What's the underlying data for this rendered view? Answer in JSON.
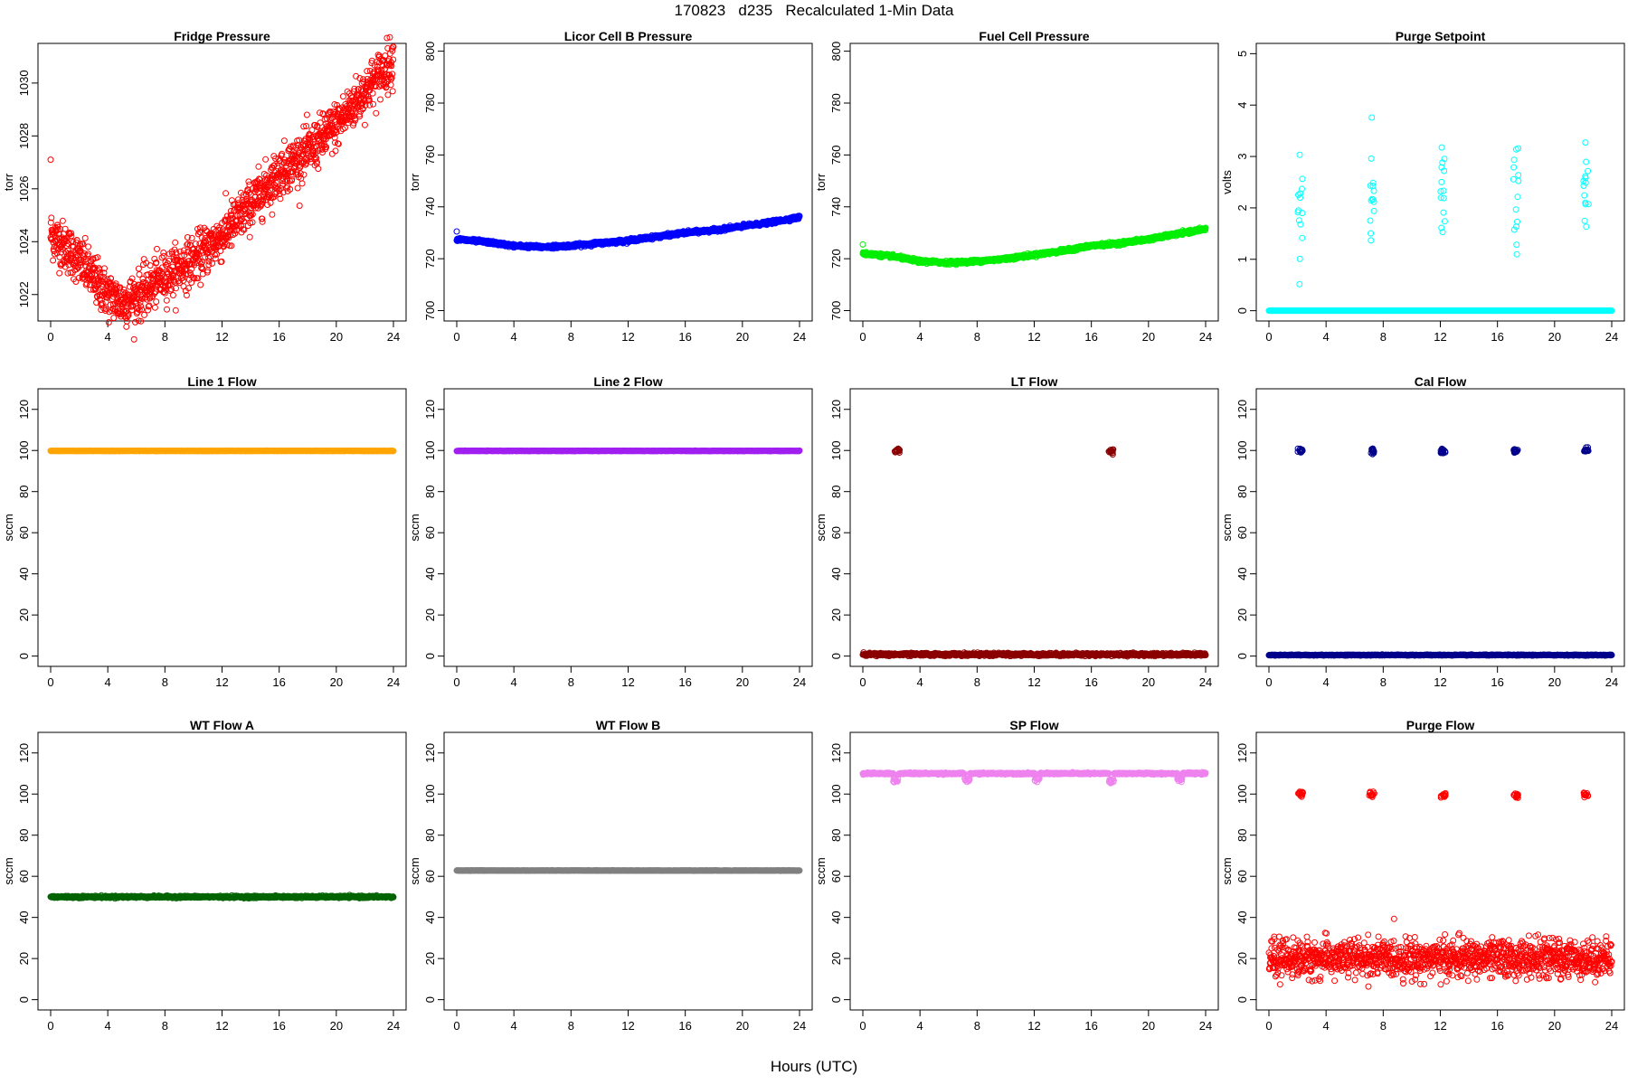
{
  "page": {
    "title": "170823   d235   Recalculated 1-Min Data",
    "x_label": "Hours (UTC)"
  },
  "chart_data": [
    {
      "type": "scatter",
      "title": "Fridge Pressure",
      "ylabel": "torr",
      "xlim": [
        0,
        24
      ],
      "ylim": [
        1021,
        1031.5
      ],
      "xticks": [
        0,
        4,
        8,
        12,
        16,
        20,
        24
      ],
      "yticks": [
        1022,
        1024,
        1026,
        1028,
        1030
      ],
      "color": "#ff0000",
      "marker": "open-circle",
      "series": [
        {
          "curve": [
            [
              0,
              1024.3
            ],
            [
              1,
              1023.8
            ],
            [
              2,
              1023.3
            ],
            [
              3,
              1022.6
            ],
            [
              4,
              1022.0
            ],
            [
              5,
              1021.7
            ],
            [
              6,
              1021.9
            ],
            [
              7,
              1022.3
            ],
            [
              8,
              1022.7
            ],
            [
              10,
              1023.3
            ],
            [
              12,
              1024.2
            ],
            [
              14,
              1025.4
            ],
            [
              16,
              1026.6
            ],
            [
              18,
              1027.4
            ],
            [
              20,
              1028.4
            ],
            [
              22,
              1029.7
            ],
            [
              24,
              1030.9
            ]
          ],
          "spread": 0.45,
          "count": 1440,
          "outliers": [
            [
              0,
              1027.1
            ]
          ]
        }
      ]
    },
    {
      "type": "scatter",
      "title": "Licor Cell B Pressure",
      "ylabel": "torr",
      "xlim": [
        0,
        24
      ],
      "ylim": [
        696,
        803
      ],
      "xticks": [
        0,
        4,
        8,
        12,
        16,
        20,
        24
      ],
      "yticks": [
        700,
        720,
        740,
        760,
        780,
        800
      ],
      "color": "#0000ff",
      "marker": "open-circle",
      "series": [
        {
          "curve": [
            [
              0,
              727.5
            ],
            [
              2,
              726.5
            ],
            [
              4,
              725
            ],
            [
              6,
              724.5
            ],
            [
              8,
              725
            ],
            [
              10,
              726
            ],
            [
              12,
              727
            ],
            [
              14,
              728.5
            ],
            [
              16,
              730
            ],
            [
              18,
              731
            ],
            [
              20,
              732.5
            ],
            [
              22,
              734
            ],
            [
              24,
              736
            ]
          ],
          "spread": 0.3,
          "count": 1440,
          "outliers": [
            [
              0,
              730.5
            ]
          ]
        }
      ]
    },
    {
      "type": "scatter",
      "title": "Fuel Cell Pressure",
      "ylabel": "torr",
      "xlim": [
        0,
        24
      ],
      "ylim": [
        696,
        803
      ],
      "xticks": [
        0,
        4,
        8,
        12,
        16,
        20,
        24
      ],
      "yticks": [
        700,
        720,
        740,
        760,
        780,
        800
      ],
      "color": "#00ee00",
      "marker": "open-circle",
      "series": [
        {
          "curve": [
            [
              0,
              722
            ],
            [
              2,
              721
            ],
            [
              4,
              719
            ],
            [
              6,
              718.5
            ],
            [
              8,
              719
            ],
            [
              10,
              720
            ],
            [
              12,
              721.5
            ],
            [
              14,
              723
            ],
            [
              16,
              725
            ],
            [
              18,
              726
            ],
            [
              20,
              727.5
            ],
            [
              22,
              729.5
            ],
            [
              24,
              731.5
            ]
          ],
          "spread": 0.3,
          "count": 1440,
          "outliers": [
            [
              0,
              725.5
            ]
          ]
        }
      ]
    },
    {
      "type": "scatter",
      "title": "Purge Setpoint",
      "ylabel": "volts",
      "xlim": [
        0,
        24
      ],
      "ylim": [
        -0.2,
        5.2
      ],
      "xticks": [
        0,
        4,
        8,
        12,
        16,
        20,
        24
      ],
      "yticks": [
        0,
        1,
        2,
        3,
        4,
        5
      ],
      "color": "#00ffff",
      "marker": "open-circle",
      "series": [
        {
          "curve": [
            [
              0,
              0
            ],
            [
              24,
              0
            ]
          ],
          "spread": 0.0,
          "count": 800,
          "clusters": [
            {
              "x": 2.2,
              "y": 2.28
            },
            {
              "x": 7.2,
              "y": 2.28
            },
            {
              "x": 12.2,
              "y": 2.25
            },
            {
              "x": 17.3,
              "y": 2.27
            },
            {
              "x": 22.2,
              "y": 2.28
            }
          ]
        }
      ]
    },
    {
      "type": "scatter",
      "title": "Line 1 Flow",
      "ylabel": "sccm",
      "xlim": [
        0,
        24
      ],
      "ylim": [
        -5,
        130
      ],
      "xticks": [
        0,
        4,
        8,
        12,
        16,
        20,
        24
      ],
      "yticks": [
        0,
        20,
        40,
        60,
        80,
        100,
        120
      ],
      "color": "#ffa500",
      "marker": "open-circle",
      "series": [
        {
          "curve": [
            [
              0,
              99.8
            ],
            [
              24,
              99.8
            ]
          ],
          "spread": 0.05,
          "count": 800
        }
      ]
    },
    {
      "type": "scatter",
      "title": "Line 2 Flow",
      "ylabel": "sccm",
      "xlim": [
        0,
        24
      ],
      "ylim": [
        -5,
        130
      ],
      "xticks": [
        0,
        4,
        8,
        12,
        16,
        20,
        24
      ],
      "yticks": [
        0,
        20,
        40,
        60,
        80,
        100,
        120
      ],
      "color": "#a020f0",
      "marker": "open-circle",
      "series": [
        {
          "curve": [
            [
              0,
              99.8
            ],
            [
              24,
              99.8
            ]
          ],
          "spread": 0.05,
          "count": 800
        }
      ]
    },
    {
      "type": "scatter",
      "title": "LT Flow",
      "ylabel": "sccm",
      "xlim": [
        0,
        24
      ],
      "ylim": [
        -5,
        130
      ],
      "xticks": [
        0,
        4,
        8,
        12,
        16,
        20,
        24
      ],
      "yticks": [
        0,
        20,
        40,
        60,
        80,
        100,
        120
      ],
      "color": "#8b0000",
      "marker": "open-circle",
      "series": [
        {
          "curve": [
            [
              0,
              0.8
            ],
            [
              24,
              0.8
            ]
          ],
          "spread": 0.35,
          "count": 900,
          "clusters": [
            {
              "x": 2.4,
              "y": 99.8
            },
            {
              "x": 17.4,
              "y": 99.8
            }
          ]
        }
      ]
    },
    {
      "type": "scatter",
      "title": "Cal Flow",
      "ylabel": "sccm",
      "xlim": [
        0,
        24
      ],
      "ylim": [
        -5,
        130
      ],
      "xticks": [
        0,
        4,
        8,
        12,
        16,
        20,
        24
      ],
      "yticks": [
        0,
        20,
        40,
        60,
        80,
        100,
        120
      ],
      "color": "#00008b",
      "marker": "open-circle",
      "series": [
        {
          "curve": [
            [
              0,
              0.5
            ],
            [
              24,
              0.5
            ]
          ],
          "spread": 0.1,
          "count": 800,
          "clusters": [
            {
              "x": 2.2,
              "y": 99.8
            },
            {
              "x": 7.2,
              "y": 99.8
            },
            {
              "x": 12.2,
              "y": 99.8
            },
            {
              "x": 17.3,
              "y": 99.8
            },
            {
              "x": 22.2,
              "y": 99.8
            }
          ]
        }
      ]
    },
    {
      "type": "scatter",
      "title": "WT Flow A",
      "ylabel": "sccm",
      "xlim": [
        0,
        24
      ],
      "ylim": [
        -5,
        130
      ],
      "xticks": [
        0,
        4,
        8,
        12,
        16,
        20,
        24
      ],
      "yticks": [
        0,
        20,
        40,
        60,
        80,
        100,
        120
      ],
      "color": "#006400",
      "marker": "open-circle",
      "series": [
        {
          "curve": [
            [
              0,
              50
            ],
            [
              24,
              50
            ]
          ],
          "spread": 0.25,
          "count": 900
        }
      ]
    },
    {
      "type": "scatter",
      "title": "WT Flow B",
      "ylabel": "sccm",
      "xlim": [
        0,
        24
      ],
      "ylim": [
        -5,
        130
      ],
      "xticks": [
        0,
        4,
        8,
        12,
        16,
        20,
        24
      ],
      "yticks": [
        0,
        20,
        40,
        60,
        80,
        100,
        120
      ],
      "color": "#808080",
      "marker": "open-circle",
      "series": [
        {
          "curve": [
            [
              0,
              62.8
            ],
            [
              24,
              62.8
            ]
          ],
          "spread": 0.05,
          "count": 800
        }
      ]
    },
    {
      "type": "scatter",
      "title": "SP Flow",
      "ylabel": "sccm",
      "xlim": [
        0,
        24
      ],
      "ylim": [
        -5,
        130
      ],
      "xticks": [
        0,
        4,
        8,
        12,
        16,
        20,
        24
      ],
      "yticks": [
        0,
        20,
        40,
        60,
        80,
        100,
        120
      ],
      "color": "#ee82ee",
      "marker": "open-circle",
      "series": [
        {
          "curve": [
            [
              0,
              110
            ],
            [
              24,
              110
            ]
          ],
          "spread": 0.2,
          "count": 900,
          "dips": [
            {
              "x": 2.3,
              "y": 106.5
            },
            {
              "x": 7.3,
              "y": 107.5
            },
            {
              "x": 12.2,
              "y": 107.5
            },
            {
              "x": 17.4,
              "y": 106.5
            },
            {
              "x": 22.2,
              "y": 107.5
            }
          ]
        }
      ]
    },
    {
      "type": "scatter",
      "title": "Purge Flow",
      "ylabel": "sccm",
      "xlim": [
        0,
        24
      ],
      "ylim": [
        -5,
        130
      ],
      "xticks": [
        0,
        4,
        8,
        12,
        16,
        20,
        24
      ],
      "yticks": [
        0,
        20,
        40,
        60,
        80,
        100,
        120
      ],
      "color": "#ff0000",
      "marker": "open-circle",
      "series": [
        {
          "curve": [
            [
              0,
              20
            ],
            [
              24,
              20
            ]
          ],
          "spread": 4.5,
          "count": 1300,
          "clusters": [
            {
              "x": 2.2,
              "y": 100
            },
            {
              "x": 7.2,
              "y": 100
            },
            {
              "x": 12.2,
              "y": 99.5
            },
            {
              "x": 17.3,
              "y": 99.5
            },
            {
              "x": 22.2,
              "y": 99.5
            }
          ]
        }
      ]
    }
  ]
}
